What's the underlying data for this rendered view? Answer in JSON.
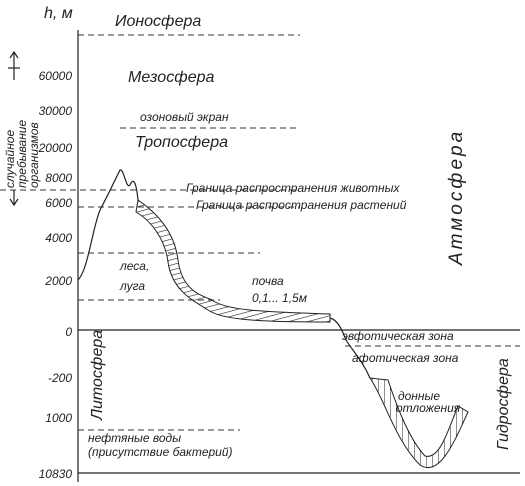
{
  "axis": {
    "label": "h, м",
    "ticks": [
      "60000",
      "30000",
      "20000",
      "8000",
      "6000",
      "4000",
      "2000",
      "0",
      "-200",
      "1000",
      "10830"
    ]
  },
  "left_note": [
    "случайное",
    "пребывание",
    "организмов"
  ],
  "layers": {
    "ionosphere": "Ионосфера",
    "mesosphere": "Мезосфера",
    "ozone": "озоновый экран",
    "troposphere": "Тропосфера"
  },
  "boundaries": {
    "animals": "Граница распространения животных",
    "plants": "Граница распространения растений"
  },
  "biomes": {
    "forest": "леса,",
    "meadow": "луга"
  },
  "soil": {
    "label": "почва",
    "depth": "0,1... 1,5м"
  },
  "zones": {
    "euphotic": "эвфотическая зона",
    "aphotic": "афотическая зона"
  },
  "sediments": [
    "донные",
    "отложения"
  ],
  "oil": [
    "нефтяные воды",
    "(присутствие бактерий)"
  ],
  "spheres": {
    "lithosphere": "Литосфера",
    "atmosphere": "Атмосфера",
    "hydrosphere": "Гидросфера"
  }
}
